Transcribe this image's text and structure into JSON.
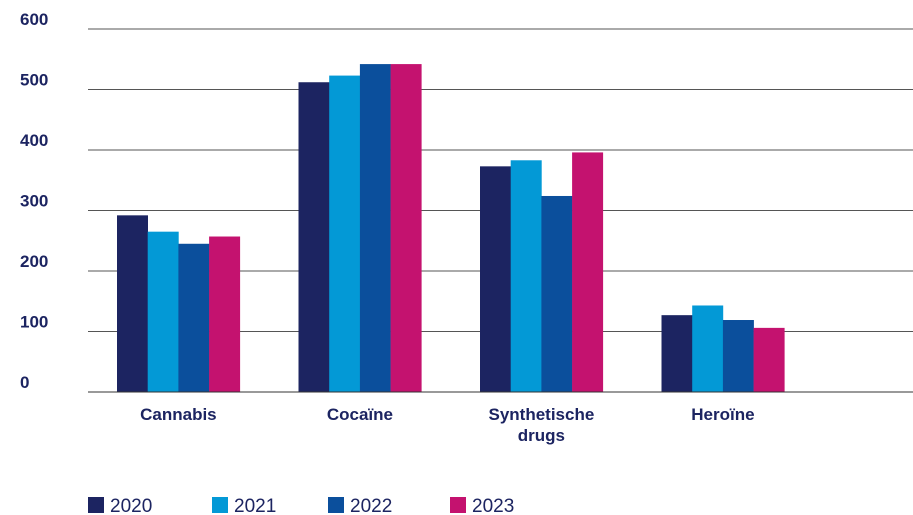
{
  "chart_data": {
    "type": "bar",
    "categories": [
      "Cannabis",
      "Cocaïne",
      "Synthetische drugs",
      "Heroïne"
    ],
    "category_lines": [
      [
        "Cannabis"
      ],
      [
        "Cocaïne"
      ],
      [
        "Synthetische",
        "drugs"
      ],
      [
        "Heroïne"
      ]
    ],
    "series": [
      {
        "name": "2020",
        "values": [
          292,
          512,
          373,
          127
        ]
      },
      {
        "name": "2021",
        "values": [
          265,
          523,
          383,
          143
        ]
      },
      {
        "name": "2022",
        "values": [
          245,
          542,
          324,
          119
        ]
      },
      {
        "name": "2023",
        "values": [
          257,
          542,
          396,
          106
        ]
      }
    ],
    "title": "",
    "xlabel": "",
    "ylabel": "",
    "ylim": [
      0,
      600
    ],
    "yticks": [
      0,
      100,
      200,
      300,
      400,
      500,
      600
    ],
    "grid": true,
    "legend_position": "bottom-left"
  },
  "colors": {
    "series": [
      "#1c2461",
      "#0399d6",
      "#0b4f9c",
      "#c4126f"
    ],
    "text": "#1c2461",
    "grid": "#555555",
    "axis": "#333333"
  }
}
